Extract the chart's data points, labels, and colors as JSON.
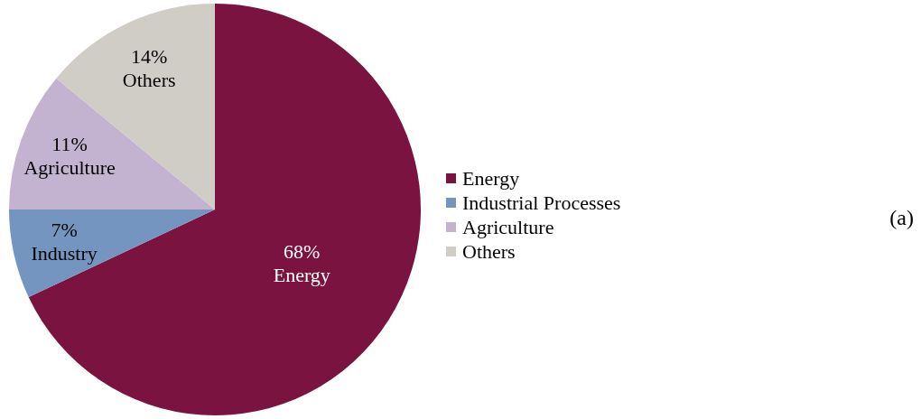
{
  "chart_data": {
    "type": "pie",
    "categories": [
      "Energy",
      "Industrial Processes",
      "Agriculture",
      "Others"
    ],
    "values": [
      68,
      7,
      11,
      14
    ],
    "colors": [
      "#7b1340",
      "#7395bf",
      "#c3b3d1",
      "#d0cdc6"
    ],
    "value_labels": [
      "68%\nEnergy",
      "7%\nIndustry",
      "11%\nAgriculture",
      "14%\nOthers"
    ],
    "legend": "right",
    "annotations": [
      "(a)"
    ]
  }
}
